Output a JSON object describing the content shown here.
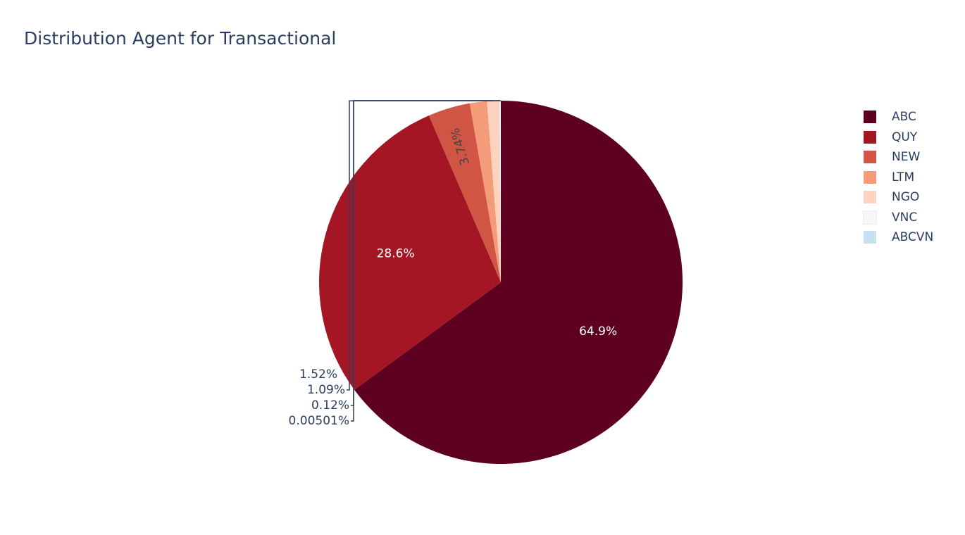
{
  "chart_data": {
    "type": "pie",
    "title": "Distribution Agent for Transactional",
    "labels": [
      "ABC",
      "QUY",
      "NEW",
      "LTM",
      "NGO",
      "VNC",
      "ABCVN"
    ],
    "values": [
      64.9,
      28.6,
      3.74,
      1.52,
      1.09,
      0.12,
      0.00501
    ],
    "text_labels": [
      "64.9%",
      "28.6%",
      "3.74%",
      "1.52%",
      "1.09%",
      "0.12%",
      "0.00501%"
    ],
    "colors": [
      "#5e001f",
      "#a51624",
      "#d05545",
      "#f49b7a",
      "#fdd3c0",
      "#f7f7f7",
      "#c9e1ef"
    ],
    "legend_position": "top-right",
    "direction": "clockwise"
  }
}
